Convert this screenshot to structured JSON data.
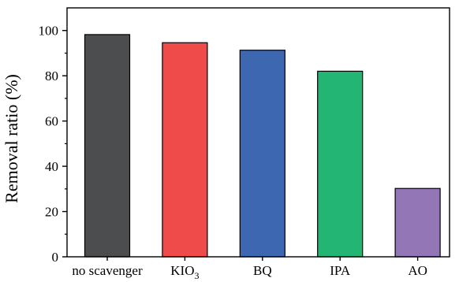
{
  "chart_data": {
    "type": "bar",
    "title": "",
    "xlabel": "",
    "ylabel": "Removal ratio (%)",
    "categories": [
      {
        "text": "no scavenger",
        "sub": ""
      },
      {
        "text": "KIO",
        "sub": "3"
      },
      {
        "text": "BQ",
        "sub": ""
      },
      {
        "text": "IPA",
        "sub": ""
      },
      {
        "text": "AO",
        "sub": ""
      }
    ],
    "values": [
      98.2,
      94.6,
      91.3,
      82.0,
      30.2
    ],
    "colors": [
      "#4b4d4e",
      "#ef4b4b",
      "#3d67b1",
      "#22b573",
      "#9376b5"
    ],
    "ylim": [
      0,
      110
    ],
    "yticks": [
      0,
      20,
      40,
      60,
      80,
      100
    ],
    "grid": false,
    "legend": "none"
  }
}
